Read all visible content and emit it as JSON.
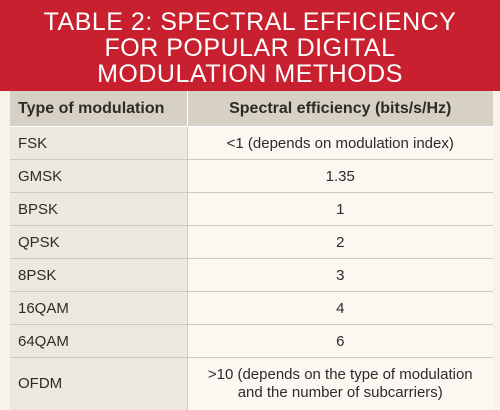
{
  "title": {
    "lines": [
      "TABLE 2: SPECTRAL EFFICIENCY",
      "FOR POPULAR DIGITAL",
      "MODULATION METHODS"
    ]
  },
  "table": {
    "headers": [
      "Type of modulation",
      "Spectral efficiency (bits/s/Hz)"
    ],
    "rows": [
      {
        "modulation": "FSK",
        "efficiency": [
          "<1 (depends on modulation index)"
        ]
      },
      {
        "modulation": "GMSK",
        "efficiency": [
          "1.35"
        ]
      },
      {
        "modulation": "BPSK",
        "efficiency": [
          "1"
        ]
      },
      {
        "modulation": "QPSK",
        "efficiency": [
          "2"
        ]
      },
      {
        "modulation": "8PSK",
        "efficiency": [
          "3"
        ]
      },
      {
        "modulation": "16QAM",
        "efficiency": [
          "4"
        ]
      },
      {
        "modulation": "64QAM",
        "efficiency": [
          "6"
        ]
      },
      {
        "modulation": "OFDM",
        "efficiency": [
          ">10 (depends on the type of modulation",
          "and the number of subcarriers)"
        ]
      }
    ]
  },
  "colors": {
    "title_background": "#c8202e",
    "header_background": "#d7d1c5",
    "first_column_background": "#ede8dd"
  }
}
